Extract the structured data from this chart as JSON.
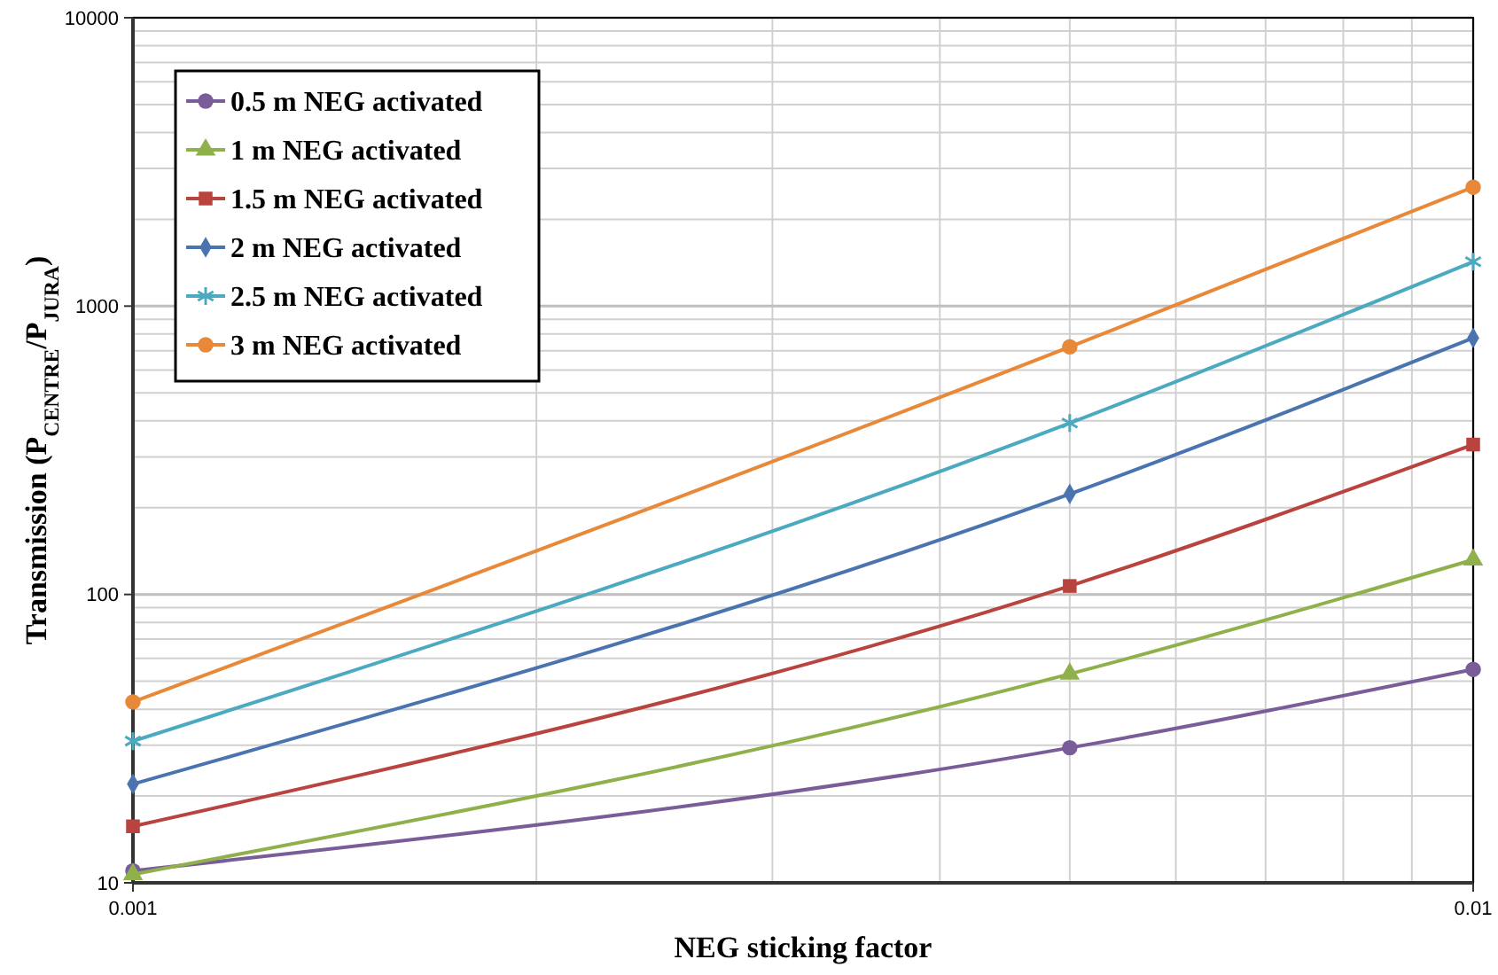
{
  "chart_data": {
    "type": "line",
    "xlabel": "NEG sticking factor",
    "ylabel": "Transmission (P$_{CENTRE}$/P$_{JURA}$)",
    "x": [
      0.001,
      0.005,
      0.01
    ],
    "log": "xy",
    "xlim": [
      0.001,
      0.01
    ],
    "xticks": [
      0.001,
      0.01
    ],
    "ylim": [
      10,
      10000
    ],
    "yticks": [
      10,
      100,
      1000,
      10000
    ],
    "grid": true,
    "legend": "top left",
    "series": [
      {
        "name": "0.5 m NEG activated",
        "color": "#7a5c99",
        "marker": "circle",
        "values": [
          11,
          29.4,
          55
        ]
      },
      {
        "name": "1 m NEG activated",
        "color": "#8fb04a",
        "marker": "triangle",
        "values": [
          10.7,
          53,
          132
        ]
      },
      {
        "name": "1.5 m NEG activated",
        "color": "#b8433f",
        "marker": "square",
        "values": [
          15.7,
          107,
          331
        ]
      },
      {
        "name": "2 m NEG activated",
        "color": "#4a74b0",
        "marker": "diamond",
        "values": [
          22,
          223,
          775
        ]
      },
      {
        "name": "2.5 m NEG activated",
        "color": "#4ba9c0",
        "marker": "cross",
        "values": [
          31,
          393,
          1425
        ]
      },
      {
        "name": "3 m NEG activated",
        "color": "#e8893a",
        "marker": "circle",
        "values": [
          42.4,
          722,
          2585
        ]
      }
    ]
  }
}
